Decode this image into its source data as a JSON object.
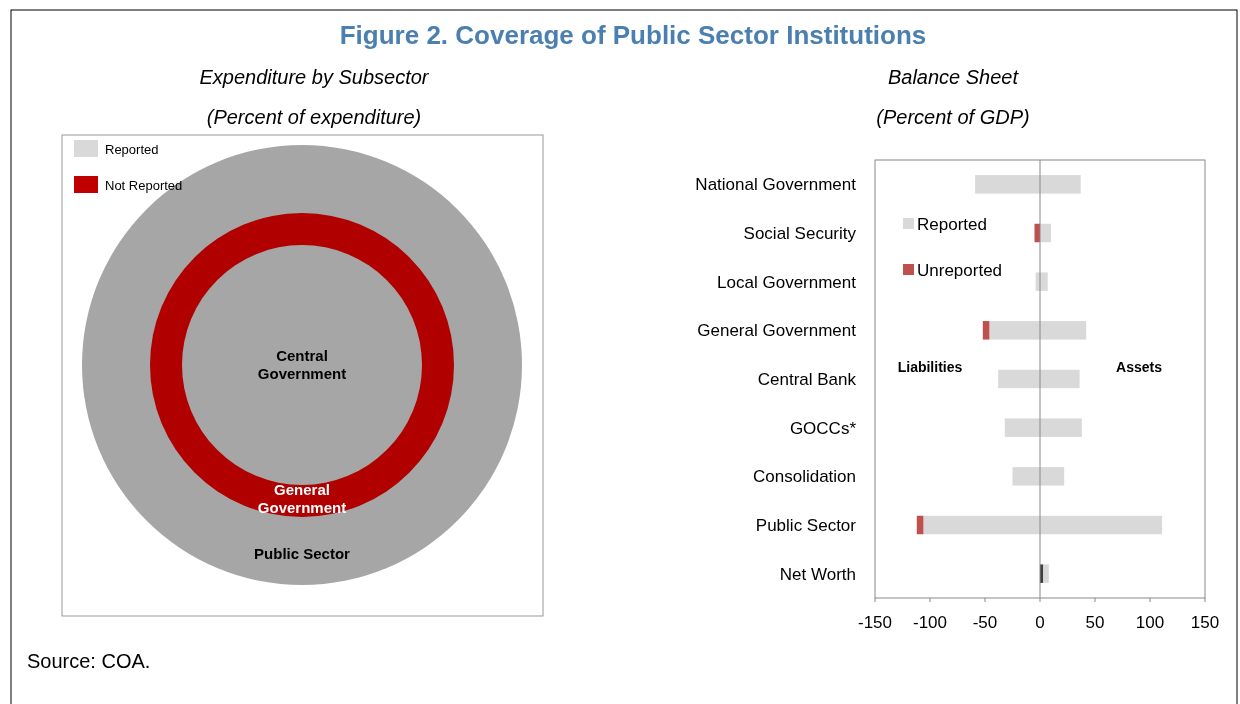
{
  "chart_data": [
    {
      "type": "other",
      "title": "Expenditure by Subsector",
      "subtitle": "(Percent of expenditure)",
      "categories": [
        "Central Government",
        "General Government",
        "Public Sector"
      ],
      "colors": [
        "#a6a6a6",
        "#b00000",
        "#a6a6a6"
      ],
      "series": [
        {
          "name": "Reported",
          "color": "#d9d9d9",
          "values": [
            null,
            null,
            null
          ]
        },
        {
          "name": "Not Reported",
          "color": "#c00000",
          "values": [
            null,
            null,
            null
          ]
        }
      ],
      "legend": "top left",
      "annotations": [
        "Figure 2. Coverage of Public Sector Institutions",
        "Source: COA."
      ]
    },
    {
      "type": "bar",
      "orientation": "horizontal",
      "stacked": true,
      "title": "Balance Sheet",
      "subtitle": "(Percent of GDP)",
      "categories": [
        "National Government",
        "Social Security",
        "Local Government",
        "General Government",
        "Central Bank",
        "GOCCs*",
        "Consolidation",
        "Public Sector",
        "Net Worth"
      ],
      "series": [
        {
          "name": "Reported",
          "color": "#d9d9d9",
          "values": [
            -59,
            null,
            -4,
            -46,
            -38,
            -32,
            -25,
            -106,
            null
          ]
        },
        {
          "name": "Unreported",
          "color": "#c0504d",
          "values": [
            null,
            -5,
            null,
            -6,
            null,
            null,
            null,
            -6,
            null
          ]
        },
        {
          "color": "#404040",
          "values": [
            null,
            null,
            null,
            null,
            null,
            null,
            null,
            null,
            3
          ]
        },
        {
          "color": "#d9d9d9",
          "values": [
            37,
            10,
            7,
            42,
            36,
            38,
            22,
            111,
            5
          ]
        }
      ],
      "xlim": [
        -150,
        150
      ],
      "xticks": [
        -150,
        -100,
        -50,
        0,
        50,
        100,
        150
      ],
      "grid": false,
      "legend": "top left",
      "ref_lines": [
        {
          "axis": "x",
          "value": 0,
          "color": "#888888"
        }
      ],
      "annotations": [
        "Liabilities",
        "Assets"
      ]
    }
  ]
}
